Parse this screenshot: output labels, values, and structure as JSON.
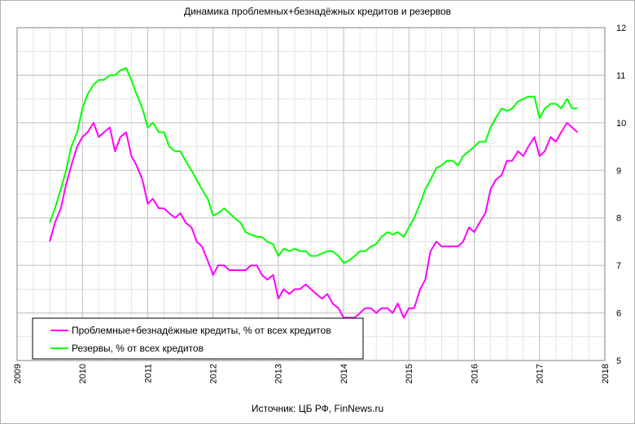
{
  "chart_data": {
    "type": "line",
    "title": "Динамика проблемных+безнадёжных кредитов и резервов",
    "source": "Источник: ЦБ РФ, FinNews.ru",
    "x_ticks": [
      "2009",
      "2010",
      "2011",
      "2012",
      "2013",
      "2014",
      "2015",
      "2016",
      "2017",
      "2018"
    ],
    "y_ticks": [
      "5",
      "6",
      "7",
      "8",
      "9",
      "10",
      "11",
      "12"
    ],
    "xlim": [
      2009,
      2018
    ],
    "ylim": [
      5,
      12
    ],
    "y_axis_side": "right",
    "grid": true,
    "legend_position": "bottom-left",
    "series": [
      {
        "name": "Проблемные+безнадёжные кредиты, % от всех кредитов",
        "color": "#ff00ff",
        "points": [
          [
            2009.5,
            7.5
          ],
          [
            2009.58,
            7.9
          ],
          [
            2009.67,
            8.2
          ],
          [
            2009.75,
            8.7
          ],
          [
            2009.83,
            9.1
          ],
          [
            2009.92,
            9.5
          ],
          [
            2010.0,
            9.7
          ],
          [
            2010.08,
            9.8
          ],
          [
            2010.17,
            10.0
          ],
          [
            2010.25,
            9.7
          ],
          [
            2010.33,
            9.8
          ],
          [
            2010.42,
            9.9
          ],
          [
            2010.5,
            9.4
          ],
          [
            2010.58,
            9.7
          ],
          [
            2010.67,
            9.8
          ],
          [
            2010.75,
            9.3
          ],
          [
            2010.83,
            9.1
          ],
          [
            2010.92,
            8.8
          ],
          [
            2011.0,
            8.3
          ],
          [
            2011.08,
            8.4
          ],
          [
            2011.17,
            8.2
          ],
          [
            2011.25,
            8.2
          ],
          [
            2011.33,
            8.1
          ],
          [
            2011.42,
            8.0
          ],
          [
            2011.5,
            8.1
          ],
          [
            2011.58,
            7.9
          ],
          [
            2011.67,
            7.8
          ],
          [
            2011.75,
            7.5
          ],
          [
            2011.83,
            7.4
          ],
          [
            2011.92,
            7.1
          ],
          [
            2012.0,
            6.8
          ],
          [
            2012.08,
            7.0
          ],
          [
            2012.17,
            7.0
          ],
          [
            2012.25,
            6.9
          ],
          [
            2012.33,
            6.9
          ],
          [
            2012.42,
            6.9
          ],
          [
            2012.5,
            6.9
          ],
          [
            2012.58,
            7.0
          ],
          [
            2012.67,
            7.0
          ],
          [
            2012.75,
            6.8
          ],
          [
            2012.83,
            6.7
          ],
          [
            2012.92,
            6.8
          ],
          [
            2013.0,
            6.3
          ],
          [
            2013.08,
            6.5
          ],
          [
            2013.17,
            6.4
          ],
          [
            2013.25,
            6.5
          ],
          [
            2013.33,
            6.5
          ],
          [
            2013.42,
            6.6
          ],
          [
            2013.5,
            6.5
          ],
          [
            2013.58,
            6.4
          ],
          [
            2013.67,
            6.3
          ],
          [
            2013.75,
            6.4
          ],
          [
            2013.83,
            6.2
          ],
          [
            2013.92,
            6.1
          ],
          [
            2014.0,
            5.9
          ],
          [
            2014.08,
            5.9
          ],
          [
            2014.17,
            5.9
          ],
          [
            2014.25,
            6.0
          ],
          [
            2014.33,
            6.1
          ],
          [
            2014.42,
            6.1
          ],
          [
            2014.5,
            6.0
          ],
          [
            2014.58,
            6.1
          ],
          [
            2014.67,
            6.1
          ],
          [
            2014.75,
            6.0
          ],
          [
            2014.83,
            6.2
          ],
          [
            2014.92,
            5.9
          ],
          [
            2015.0,
            6.1
          ],
          [
            2015.08,
            6.1
          ],
          [
            2015.17,
            6.5
          ],
          [
            2015.25,
            6.7
          ],
          [
            2015.33,
            7.3
          ],
          [
            2015.42,
            7.5
          ],
          [
            2015.5,
            7.4
          ],
          [
            2015.58,
            7.4
          ],
          [
            2015.67,
            7.4
          ],
          [
            2015.75,
            7.4
          ],
          [
            2015.83,
            7.5
          ],
          [
            2015.92,
            7.8
          ],
          [
            2016.0,
            7.7
          ],
          [
            2016.08,
            7.9
          ],
          [
            2016.17,
            8.1
          ],
          [
            2016.25,
            8.6
          ],
          [
            2016.33,
            8.8
          ],
          [
            2016.42,
            8.9
          ],
          [
            2016.5,
            9.2
          ],
          [
            2016.58,
            9.2
          ],
          [
            2016.67,
            9.4
          ],
          [
            2016.75,
            9.3
          ],
          [
            2016.83,
            9.5
          ],
          [
            2016.92,
            9.7
          ],
          [
            2017.0,
            9.3
          ],
          [
            2017.08,
            9.4
          ],
          [
            2017.17,
            9.7
          ],
          [
            2017.25,
            9.6
          ],
          [
            2017.33,
            9.8
          ],
          [
            2017.42,
            10.0
          ],
          [
            2017.5,
            9.9
          ],
          [
            2017.58,
            9.8
          ]
        ]
      },
      {
        "name": "Резервы, % от всех кредитов",
        "color": "#00ff00",
        "points": [
          [
            2009.5,
            7.9
          ],
          [
            2009.58,
            8.2
          ],
          [
            2009.67,
            8.6
          ],
          [
            2009.75,
            9.0
          ],
          [
            2009.83,
            9.5
          ],
          [
            2009.92,
            9.8
          ],
          [
            2010.0,
            10.3
          ],
          [
            2010.08,
            10.6
          ],
          [
            2010.17,
            10.8
          ],
          [
            2010.25,
            10.9
          ],
          [
            2010.33,
            10.9
          ],
          [
            2010.42,
            11.0
          ],
          [
            2010.5,
            11.0
          ],
          [
            2010.58,
            11.1
          ],
          [
            2010.67,
            11.15
          ],
          [
            2010.75,
            10.9
          ],
          [
            2010.83,
            10.6
          ],
          [
            2010.92,
            10.3
          ],
          [
            2011.0,
            9.9
          ],
          [
            2011.08,
            10.0
          ],
          [
            2011.17,
            9.8
          ],
          [
            2011.25,
            9.8
          ],
          [
            2011.33,
            9.5
          ],
          [
            2011.42,
            9.4
          ],
          [
            2011.5,
            9.4
          ],
          [
            2011.58,
            9.2
          ],
          [
            2011.67,
            9.0
          ],
          [
            2011.75,
            8.8
          ],
          [
            2011.83,
            8.6
          ],
          [
            2011.92,
            8.4
          ],
          [
            2012.0,
            8.05
          ],
          [
            2012.08,
            8.1
          ],
          [
            2012.17,
            8.2
          ],
          [
            2012.25,
            8.1
          ],
          [
            2012.33,
            8.0
          ],
          [
            2012.42,
            7.9
          ],
          [
            2012.5,
            7.7
          ],
          [
            2012.58,
            7.65
          ],
          [
            2012.67,
            7.6
          ],
          [
            2012.75,
            7.6
          ],
          [
            2012.83,
            7.5
          ],
          [
            2012.92,
            7.45
          ],
          [
            2013.0,
            7.2
          ],
          [
            2013.08,
            7.35
          ],
          [
            2013.17,
            7.3
          ],
          [
            2013.25,
            7.35
          ],
          [
            2013.33,
            7.3
          ],
          [
            2013.42,
            7.3
          ],
          [
            2013.5,
            7.2
          ],
          [
            2013.58,
            7.2
          ],
          [
            2013.67,
            7.25
          ],
          [
            2013.75,
            7.3
          ],
          [
            2013.83,
            7.3
          ],
          [
            2013.92,
            7.2
          ],
          [
            2014.0,
            7.05
          ],
          [
            2014.08,
            7.1
          ],
          [
            2014.17,
            7.2
          ],
          [
            2014.25,
            7.3
          ],
          [
            2014.33,
            7.3
          ],
          [
            2014.42,
            7.4
          ],
          [
            2014.5,
            7.45
          ],
          [
            2014.58,
            7.6
          ],
          [
            2014.67,
            7.7
          ],
          [
            2014.75,
            7.65
          ],
          [
            2014.83,
            7.7
          ],
          [
            2014.92,
            7.6
          ],
          [
            2015.0,
            7.8
          ],
          [
            2015.08,
            8.0
          ],
          [
            2015.17,
            8.3
          ],
          [
            2015.25,
            8.6
          ],
          [
            2015.33,
            8.8
          ],
          [
            2015.42,
            9.05
          ],
          [
            2015.5,
            9.1
          ],
          [
            2015.58,
            9.2
          ],
          [
            2015.67,
            9.2
          ],
          [
            2015.75,
            9.1
          ],
          [
            2015.83,
            9.3
          ],
          [
            2015.92,
            9.4
          ],
          [
            2016.0,
            9.5
          ],
          [
            2016.08,
            9.6
          ],
          [
            2016.17,
            9.6
          ],
          [
            2016.25,
            9.9
          ],
          [
            2016.33,
            10.1
          ],
          [
            2016.42,
            10.3
          ],
          [
            2016.5,
            10.25
          ],
          [
            2016.58,
            10.3
          ],
          [
            2016.67,
            10.45
          ],
          [
            2016.75,
            10.5
          ],
          [
            2016.83,
            10.55
          ],
          [
            2016.92,
            10.55
          ],
          [
            2017.0,
            10.1
          ],
          [
            2017.08,
            10.3
          ],
          [
            2017.17,
            10.4
          ],
          [
            2017.25,
            10.4
          ],
          [
            2017.33,
            10.3
          ],
          [
            2017.42,
            10.5
          ],
          [
            2017.5,
            10.3
          ],
          [
            2017.58,
            10.3
          ]
        ]
      }
    ]
  }
}
